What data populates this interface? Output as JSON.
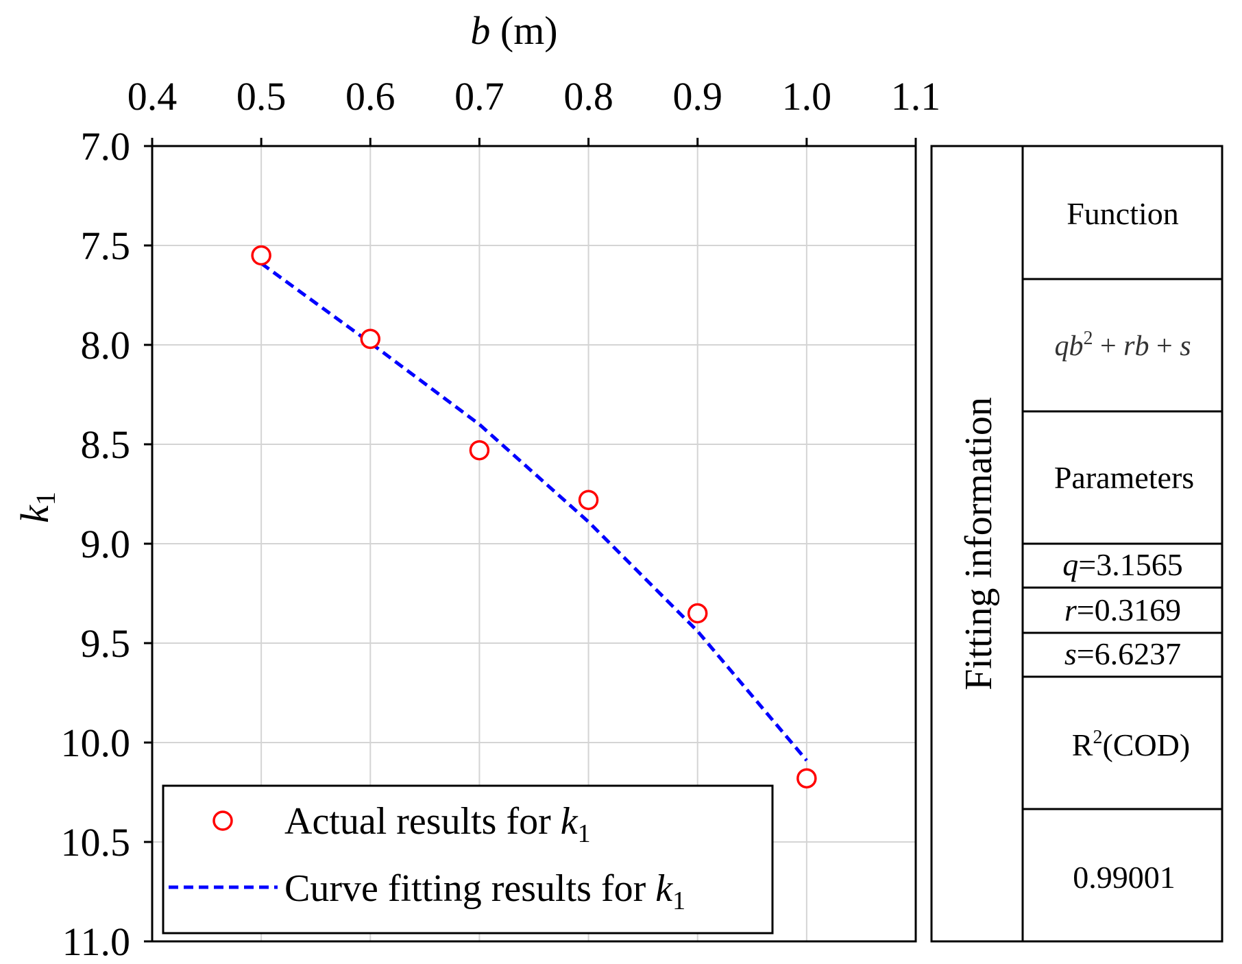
{
  "chart_data": {
    "type": "scatter",
    "title": "",
    "xlabel": "b (m)",
    "ylabel": "k1",
    "x_axis_position": "top",
    "y_axis_inverted": true,
    "xlim": [
      0.4,
      1.1
    ],
    "ylim": [
      7.0,
      11.0
    ],
    "x_ticks": [
      "0.4",
      "0.5",
      "0.6",
      "0.7",
      "0.8",
      "0.9",
      "1.0",
      "1.1"
    ],
    "y_ticks": [
      "7.0",
      "7.5",
      "8.0",
      "8.5",
      "9.0",
      "9.5",
      "10.0",
      "10.5",
      "11.0"
    ],
    "grid": true,
    "series": [
      {
        "name": "Actual results for k1",
        "kind": "markers",
        "color": "#ff0000",
        "x": [
          0.5,
          0.6,
          0.7,
          0.8,
          0.9,
          1.0
        ],
        "y": [
          7.55,
          7.97,
          8.53,
          8.78,
          9.35,
          10.18
        ]
      },
      {
        "name": "Curve fitting results for k1",
        "kind": "dashed-line",
        "color": "#0000ff",
        "x": [
          0.5,
          0.6,
          0.7,
          0.8,
          0.9,
          1.0
        ],
        "y": [
          7.59,
          7.99,
          8.4,
          8.89,
          9.44,
          10.09
        ]
      }
    ],
    "legend": {
      "placement": "bottom-left",
      "entries": [
        {
          "prefix": "Actual results for ",
          "var": "k",
          "sub": "1"
        },
        {
          "prefix": "Curve fitting results for ",
          "var": "k",
          "sub": "1"
        }
      ]
    },
    "axis_labels": {
      "x": {
        "var": "b",
        "unit": " (m)"
      },
      "y": {
        "var": "k",
        "sub": "1"
      }
    },
    "fit_table": {
      "title": "Fitting information",
      "function_header": "Function",
      "function_formula": {
        "q": "q",
        "b": "b",
        "sup": "2",
        "plus1": " + ",
        "r": "r",
        "b2": "b",
        "plus2": " + ",
        "s": "s"
      },
      "parameters_header": "Parameters",
      "parameters": [
        {
          "name": "q",
          "value": "=3.1565"
        },
        {
          "name": "r",
          "value": "=0.3169"
        },
        {
          "name": "s",
          "value": "=6.6237"
        }
      ],
      "r2_header": {
        "base": "R",
        "sup": "2",
        "rest": "(COD)"
      },
      "r2_value": "0.99001"
    }
  }
}
